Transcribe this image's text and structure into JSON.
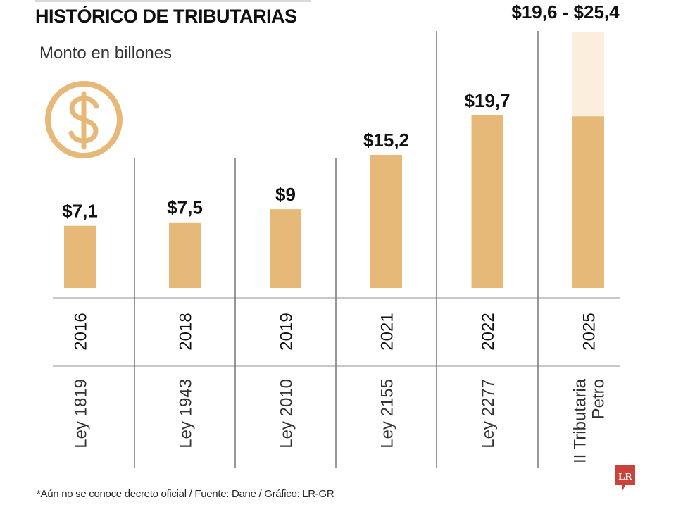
{
  "header": {
    "title": "HISTÓRICO DE TRIBUTARIAS",
    "subtitle": "Monto en billones"
  },
  "icons": {
    "coin": "dollar-coin-icon",
    "logo": "LR"
  },
  "footer": {
    "footnote": "*Aún no se conoce decreto oficial / Fuente: Dane / Gráfico: LR-GR",
    "logo_text": "LR"
  },
  "colors": {
    "bar": "#e6b978",
    "bar_projection": "#fbeedd",
    "grid": "#c8c8c8",
    "divider": "#777777",
    "logo": "#c9423c"
  },
  "chart_data": {
    "type": "bar",
    "title": "HISTÓRICO DE TRIBUTARIAS",
    "subtitle": "Monto en billones",
    "xlabel": "",
    "ylabel": "Monto en billones",
    "categories": [
      "2016",
      "2018",
      "2019",
      "2021",
      "2022",
      "2025"
    ],
    "laws": [
      [
        "Ley 1819"
      ],
      [
        "Ley 1943"
      ],
      [
        "Ley 2010"
      ],
      [
        "Ley 2155"
      ],
      [
        "Ley 2277"
      ],
      [
        "II Tributaria",
        "Petro"
      ]
    ],
    "values": [
      7.1,
      7.5,
      9,
      15.2,
      19.7,
      19.6
    ],
    "range_high": [
      null,
      null,
      null,
      null,
      null,
      25.4
    ],
    "value_labels": [
      "$7,1",
      "$7,5",
      "$9",
      "$15,2",
      "$19,7",
      "$19,6 - $25,4"
    ],
    "ylim": [
      0,
      25.4
    ],
    "grid": false,
    "legend": "none"
  }
}
